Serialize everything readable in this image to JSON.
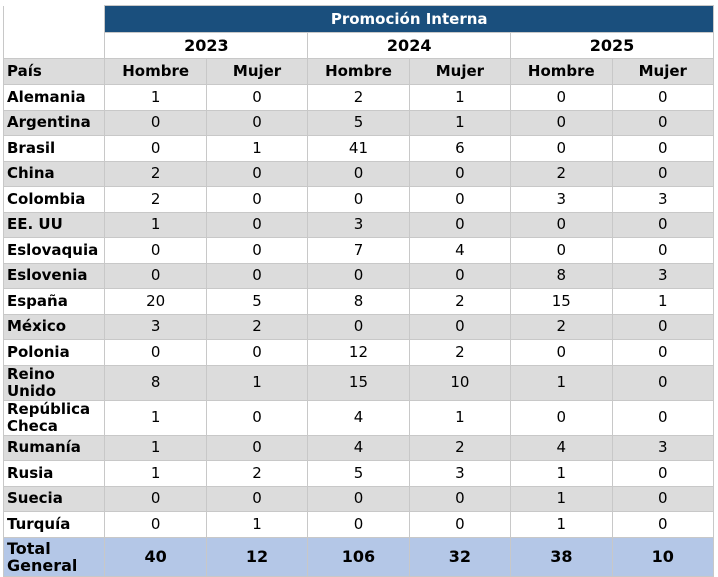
{
  "header": {
    "title": "Promoción Interna",
    "years": [
      "2023",
      "2024",
      "2025"
    ],
    "country_label": "País",
    "subheaders": [
      "Hombre",
      "Mujer",
      "Hombre",
      "Mujer",
      "Hombre",
      "Mujer"
    ]
  },
  "table": {
    "rows": [
      [
        "Alemania",
        1,
        0,
        2,
        1,
        0,
        0
      ],
      [
        "Argentina",
        0,
        0,
        5,
        1,
        0,
        0
      ],
      [
        "Brasil",
        0,
        1,
        41,
        6,
        0,
        0
      ],
      [
        "China",
        2,
        0,
        0,
        0,
        2,
        0
      ],
      [
        "Colombia",
        2,
        0,
        0,
        0,
        3,
        3
      ],
      [
        "EE. UU",
        1,
        0,
        3,
        0,
        0,
        0
      ],
      [
        "Eslovaquia",
        0,
        0,
        7,
        4,
        0,
        0
      ],
      [
        "Eslovenia",
        0,
        0,
        0,
        0,
        8,
        3
      ],
      [
        "España",
        20,
        5,
        8,
        2,
        15,
        1
      ],
      [
        "México",
        3,
        2,
        0,
        0,
        2,
        0
      ],
      [
        "Polonia",
        0,
        0,
        12,
        2,
        0,
        0
      ],
      [
        "Reino Unido",
        8,
        1,
        15,
        10,
        1,
        0
      ],
      [
        "República Checa",
        1,
        0,
        4,
        1,
        0,
        0
      ],
      [
        "Rumanía",
        1,
        0,
        4,
        2,
        4,
        3
      ],
      [
        "Rusia",
        1,
        2,
        5,
        3,
        1,
        0
      ],
      [
        "Suecia",
        0,
        0,
        0,
        0,
        1,
        0
      ],
      [
        "Turquía",
        0,
        1,
        0,
        0,
        1,
        0
      ]
    ],
    "total": [
      "Total General",
      40,
      12,
      106,
      32,
      38,
      10
    ]
  }
}
